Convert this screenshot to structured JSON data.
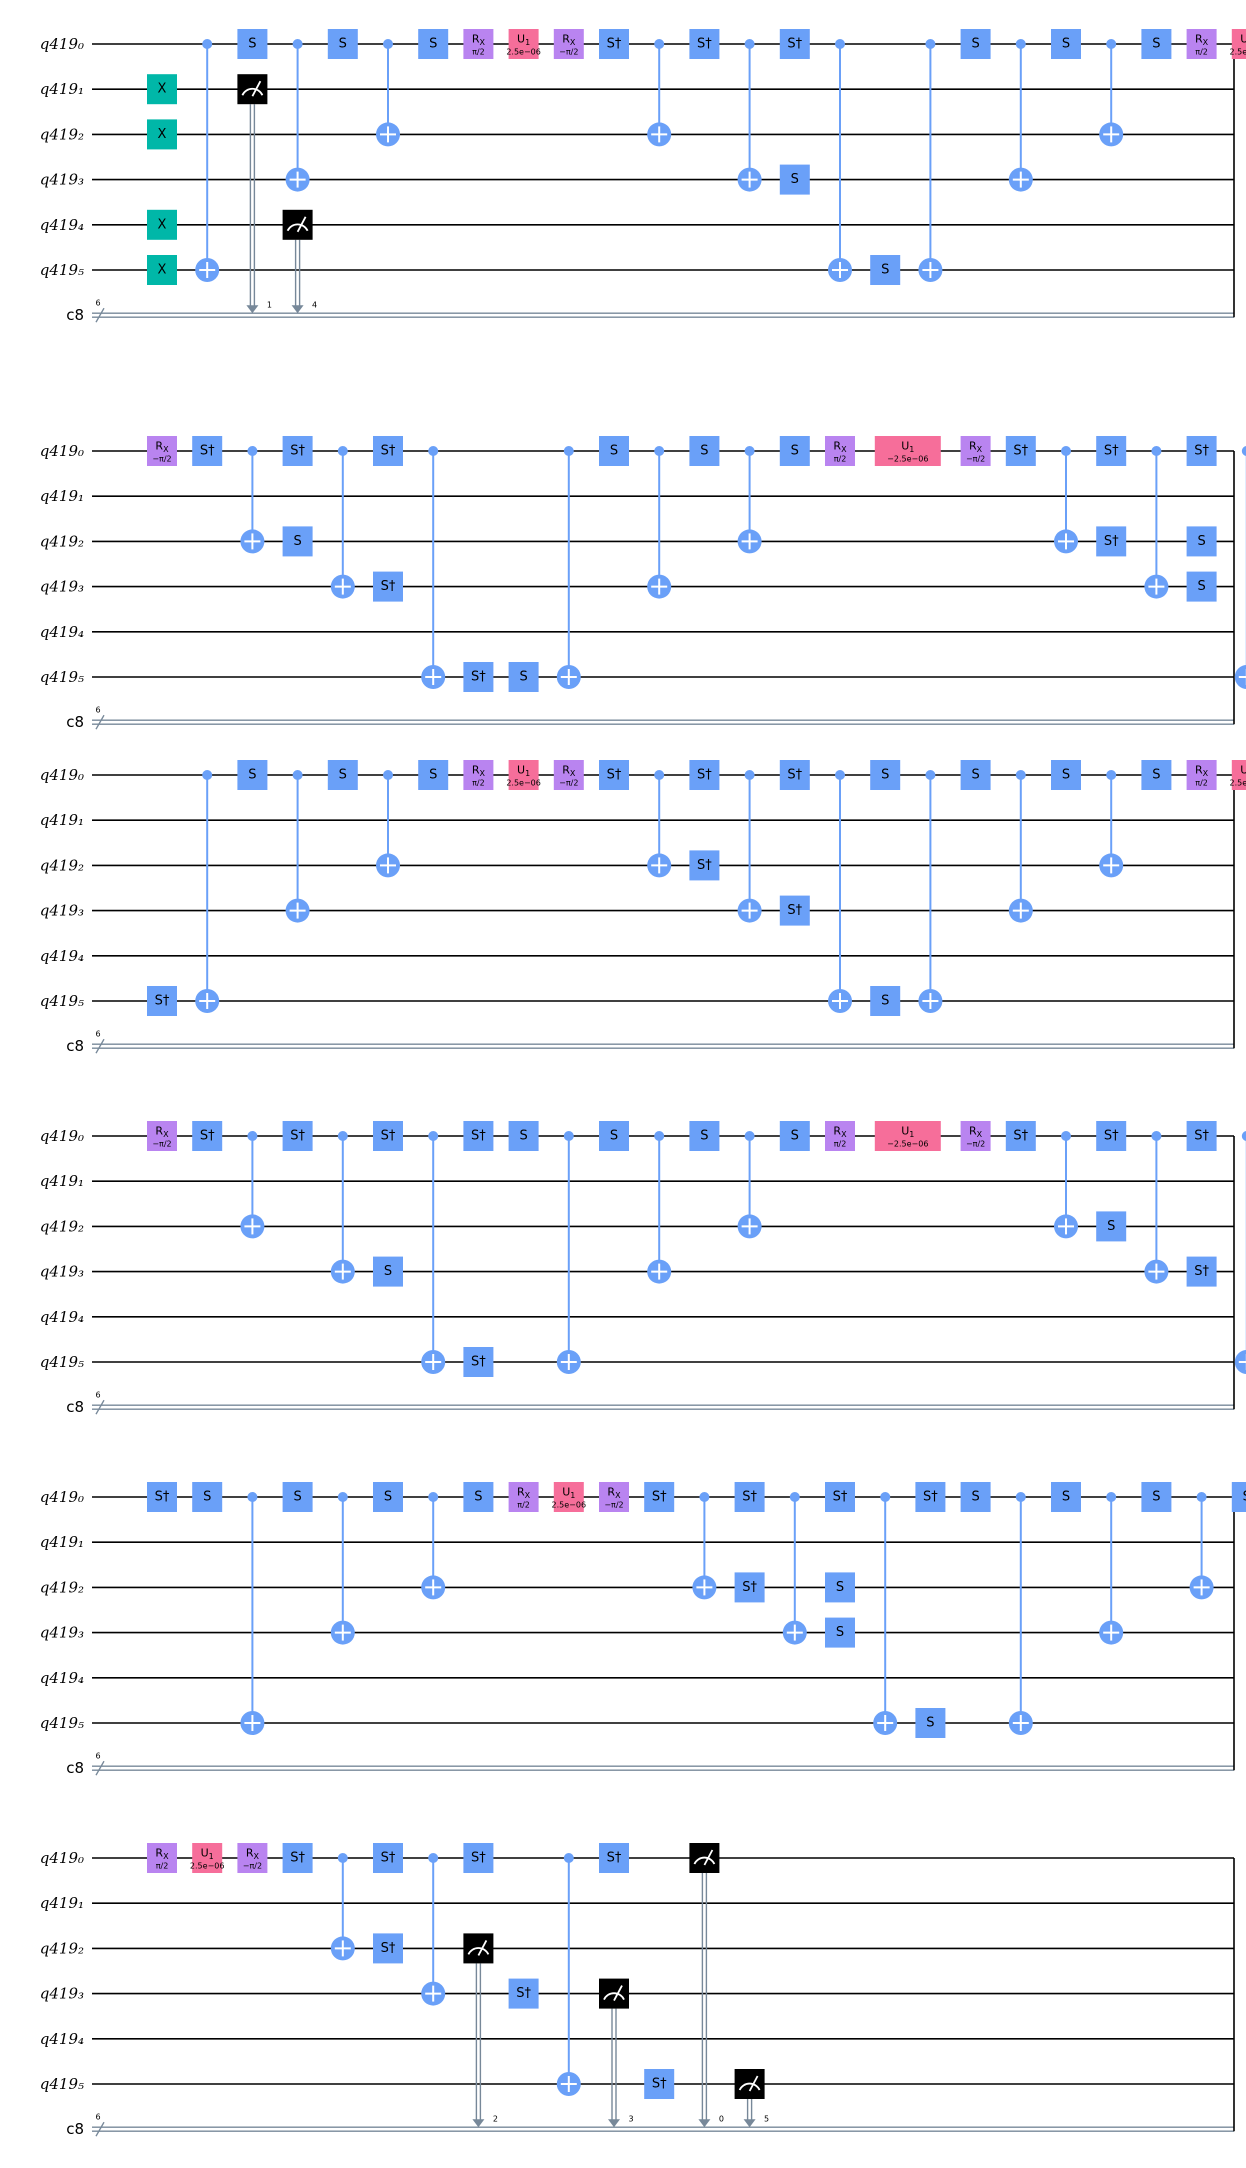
{
  "qubit_labels": [
    "q419₀",
    "q419₁",
    "q419₂",
    "q419₃",
    "q419₄",
    "q419₅"
  ],
  "classical_label": "c8",
  "bus_width": "6",
  "colors": {
    "x_gate": "#00b7a8",
    "s_gate": "#6aa0f8",
    "rx_gate": "#b984f0",
    "u1_gate": "#f66e9a",
    "measure": "#000000",
    "control": "#6aa0f8",
    "classical_wire": "#778899"
  },
  "gate_text": {
    "x": "X",
    "s": "S",
    "sdg": "S†",
    "rx": "R",
    "rx_sub": "X",
    "u1": "U",
    "u1_sub": "1",
    "rx_plus": "π/2",
    "rx_minus": "−π/2",
    "u1_plus": "2.5e−06",
    "u1_minus": "−2.5e−06"
  },
  "rows": [
    {
      "ops": [
        {
          "c": 0,
          "g": "x",
          "q": [
            1,
            2,
            4,
            5
          ]
        },
        {
          "c": 1,
          "g": "cx",
          "ctl": 0,
          "tgt": 5
        },
        {
          "c": 2,
          "g": "s",
          "q": [
            0
          ]
        },
        {
          "c": 2,
          "g": "m",
          "q": 1,
          "bit": "1"
        },
        {
          "c": 3,
          "g": "cx",
          "ctl": 0,
          "tgt": 3
        },
        {
          "c": 3,
          "g": "m",
          "q": 4,
          "bit": "4"
        },
        {
          "c": 4,
          "g": "s",
          "q": [
            0
          ]
        },
        {
          "c": 5,
          "g": "cx",
          "ctl": 0,
          "tgt": 2
        },
        {
          "c": 6,
          "g": "s",
          "q": [
            0
          ]
        },
        {
          "c": 7,
          "g": "rx+",
          "q": [
            0
          ]
        },
        {
          "c": 8,
          "g": "u1+",
          "q": [
            0
          ]
        },
        {
          "c": 9,
          "g": "rx-",
          "q": [
            0
          ]
        },
        {
          "c": 10,
          "g": "sdg",
          "q": [
            0
          ]
        },
        {
          "c": 11,
          "g": "cx",
          "ctl": 0,
          "tgt": 2
        },
        {
          "c": 12,
          "g": "sdg",
          "q": [
            0
          ]
        },
        {
          "c": 13,
          "g": "cx",
          "ctl": 0,
          "tgt": 3
        },
        {
          "c": 14,
          "g": "sdg",
          "q": [
            0
          ]
        },
        {
          "c": 14,
          "g": "s",
          "q": [
            3
          ]
        },
        {
          "c": 15,
          "g": "cx",
          "ctl": 0,
          "tgt": 5
        },
        {
          "c": 16,
          "g": "s",
          "q": [
            5
          ]
        },
        {
          "c": 17,
          "g": "cx",
          "ctl": 0,
          "tgt": 5
        },
        {
          "c": 18,
          "g": "s",
          "q": [
            0
          ]
        },
        {
          "c": 19,
          "g": "cx",
          "ctl": 0,
          "tgt": 3
        },
        {
          "c": 20,
          "g": "s",
          "q": [
            0
          ]
        },
        {
          "c": 21,
          "g": "cx",
          "ctl": 0,
          "tgt": 2
        },
        {
          "c": 22,
          "g": "s",
          "q": [
            0
          ]
        },
        {
          "c": 23,
          "g": "rx+",
          "q": [
            0
          ]
        },
        {
          "c": 24,
          "g": "u1+",
          "q": [
            0
          ]
        }
      ]
    },
    {
      "ops": [
        {
          "c": 0,
          "g": "rx-",
          "q": [
            0
          ]
        },
        {
          "c": 1,
          "g": "sdg",
          "q": [
            0
          ]
        },
        {
          "c": 2,
          "g": "cx",
          "ctl": 0,
          "tgt": 2
        },
        {
          "c": 3,
          "g": "sdg",
          "q": [
            0
          ]
        },
        {
          "c": 3,
          "g": "s",
          "q": [
            2
          ]
        },
        {
          "c": 4,
          "g": "cx",
          "ctl": 0,
          "tgt": 3
        },
        {
          "c": 5,
          "g": "sdg",
          "q": [
            0,
            3
          ]
        },
        {
          "c": 6,
          "g": "cx",
          "ctl": 0,
          "tgt": 5
        },
        {
          "c": 7,
          "g": "sdg",
          "q": [
            5
          ]
        },
        {
          "c": 8,
          "g": "s",
          "q": [
            5
          ]
        },
        {
          "c": 9,
          "g": "cx",
          "ctl": 0,
          "tgt": 5
        },
        {
          "c": 10,
          "g": "s",
          "q": [
            0
          ]
        },
        {
          "c": 11,
          "g": "cx",
          "ctl": 0,
          "tgt": 3
        },
        {
          "c": 12,
          "g": "s",
          "q": [
            0
          ]
        },
        {
          "c": 13,
          "g": "cx",
          "ctl": 0,
          "tgt": 2
        },
        {
          "c": 14,
          "g": "s",
          "q": [
            0
          ]
        },
        {
          "c": 15,
          "g": "rx+",
          "q": [
            0
          ]
        },
        {
          "c": 16.5,
          "g": "u1-",
          "q": [
            0
          ]
        },
        {
          "c": 18,
          "g": "rx-",
          "q": [
            0
          ]
        },
        {
          "c": 19,
          "g": "sdg",
          "q": [
            0
          ]
        },
        {
          "c": 20,
          "g": "cx",
          "ctl": 0,
          "tgt": 2
        },
        {
          "c": 21,
          "g": "sdg",
          "q": [
            0,
            2
          ]
        },
        {
          "c": 22,
          "g": "cx",
          "ctl": 0,
          "tgt": 3
        },
        {
          "c": 23,
          "g": "sdg",
          "q": [
            0
          ]
        },
        {
          "c": 23,
          "g": "s",
          "q": [
            2,
            3
          ]
        },
        {
          "c": 24,
          "g": "cx",
          "ctl": 0,
          "tgt": 5
        }
      ]
    },
    {
      "ops": [
        {
          "c": 0,
          "g": "sdg",
          "q": [
            5
          ]
        },
        {
          "c": 1,
          "g": "cx",
          "ctl": 0,
          "tgt": 5
        },
        {
          "c": 2,
          "g": "s",
          "q": [
            0
          ]
        },
        {
          "c": 3,
          "g": "cx",
          "ctl": 0,
          "tgt": 3
        },
        {
          "c": 4,
          "g": "s",
          "q": [
            0
          ]
        },
        {
          "c": 5,
          "g": "cx",
          "ctl": 0,
          "tgt": 2
        },
        {
          "c": 6,
          "g": "s",
          "q": [
            0
          ]
        },
        {
          "c": 7,
          "g": "rx+",
          "q": [
            0
          ]
        },
        {
          "c": 8,
          "g": "u1+",
          "q": [
            0
          ]
        },
        {
          "c": 9,
          "g": "rx-",
          "q": [
            0
          ]
        },
        {
          "c": 10,
          "g": "sdg",
          "q": [
            0
          ]
        },
        {
          "c": 11,
          "g": "cx",
          "ctl": 0,
          "tgt": 2
        },
        {
          "c": 12,
          "g": "sdg",
          "q": [
            0,
            2
          ]
        },
        {
          "c": 13,
          "g": "cx",
          "ctl": 0,
          "tgt": 3
        },
        {
          "c": 14,
          "g": "sdg",
          "q": [
            0,
            3
          ]
        },
        {
          "c": 15,
          "g": "cx",
          "ctl": 0,
          "tgt": 5
        },
        {
          "c": 16,
          "g": "s",
          "q": [
            0,
            5
          ]
        },
        {
          "c": 17,
          "g": "cx",
          "ctl": 0,
          "tgt": 5
        },
        {
          "c": 18,
          "g": "s",
          "q": [
            0
          ]
        },
        {
          "c": 19,
          "g": "cx",
          "ctl": 0,
          "tgt": 3
        },
        {
          "c": 20,
          "g": "s",
          "q": [
            0
          ]
        },
        {
          "c": 21,
          "g": "cx",
          "ctl": 0,
          "tgt": 2
        },
        {
          "c": 22,
          "g": "s",
          "q": [
            0
          ]
        },
        {
          "c": 23,
          "g": "rx+",
          "q": [
            0
          ]
        },
        {
          "c": 24,
          "g": "u1+",
          "q": [
            0
          ]
        }
      ]
    },
    {
      "ops": [
        {
          "c": 0,
          "g": "rx-",
          "q": [
            0
          ]
        },
        {
          "c": 1,
          "g": "sdg",
          "q": [
            0
          ]
        },
        {
          "c": 2,
          "g": "cx",
          "ctl": 0,
          "tgt": 2
        },
        {
          "c": 3,
          "g": "sdg",
          "q": [
            0
          ]
        },
        {
          "c": 4,
          "g": "cx",
          "ctl": 0,
          "tgt": 3
        },
        {
          "c": 5,
          "g": "sdg",
          "q": [
            0
          ]
        },
        {
          "c": 5,
          "g": "s",
          "q": [
            3
          ]
        },
        {
          "c": 6,
          "g": "cx",
          "ctl": 0,
          "tgt": 5
        },
        {
          "c": 7,
          "g": "sdg",
          "q": [
            0,
            5
          ]
        },
        {
          "c": 8,
          "g": "s",
          "q": [
            0
          ]
        },
        {
          "c": 9,
          "g": "cx",
          "ctl": 0,
          "tgt": 5
        },
        {
          "c": 10,
          "g": "s",
          "q": [
            0
          ]
        },
        {
          "c": 11,
          "g": "cx",
          "ctl": 0,
          "tgt": 3
        },
        {
          "c": 12,
          "g": "s",
          "q": [
            0
          ]
        },
        {
          "c": 13,
          "g": "cx",
          "ctl": 0,
          "tgt": 2
        },
        {
          "c": 14,
          "g": "s",
          "q": [
            0
          ]
        },
        {
          "c": 15,
          "g": "rx+",
          "q": [
            0
          ]
        },
        {
          "c": 16.5,
          "g": "u1-",
          "q": [
            0
          ]
        },
        {
          "c": 18,
          "g": "rx-",
          "q": [
            0
          ]
        },
        {
          "c": 19,
          "g": "sdg",
          "q": [
            0
          ]
        },
        {
          "c": 20,
          "g": "cx",
          "ctl": 0,
          "tgt": 2
        },
        {
          "c": 21,
          "g": "sdg",
          "q": [
            0
          ]
        },
        {
          "c": 21,
          "g": "s",
          "q": [
            2
          ]
        },
        {
          "c": 22,
          "g": "cx",
          "ctl": 0,
          "tgt": 3
        },
        {
          "c": 23,
          "g": "sdg",
          "q": [
            0,
            3
          ]
        },
        {
          "c": 24,
          "g": "cx",
          "ctl": 0,
          "tgt": 5
        }
      ]
    },
    {
      "ops": [
        {
          "c": 0,
          "g": "sdg",
          "q": [
            0
          ]
        },
        {
          "c": 1,
          "g": "s",
          "q": [
            0
          ]
        },
        {
          "c": 2,
          "g": "cx",
          "ctl": 0,
          "tgt": 5
        },
        {
          "c": 3,
          "g": "s",
          "q": [
            0
          ]
        },
        {
          "c": 4,
          "g": "cx",
          "ctl": 0,
          "tgt": 3
        },
        {
          "c": 5,
          "g": "s",
          "q": [
            0
          ]
        },
        {
          "c": 6,
          "g": "cx",
          "ctl": 0,
          "tgt": 2
        },
        {
          "c": 7,
          "g": "s",
          "q": [
            0
          ]
        },
        {
          "c": 8,
          "g": "rx+",
          "q": [
            0
          ]
        },
        {
          "c": 9,
          "g": "u1+",
          "q": [
            0
          ]
        },
        {
          "c": 10,
          "g": "rx-",
          "q": [
            0
          ]
        },
        {
          "c": 11,
          "g": "sdg",
          "q": [
            0
          ]
        },
        {
          "c": 12,
          "g": "cx",
          "ctl": 0,
          "tgt": 2
        },
        {
          "c": 13,
          "g": "sdg",
          "q": [
            0,
            2
          ]
        },
        {
          "c": 14,
          "g": "cx",
          "ctl": 0,
          "tgt": 3
        },
        {
          "c": 15,
          "g": "sdg",
          "q": [
            0
          ]
        },
        {
          "c": 15,
          "g": "s",
          "q": [
            2,
            3
          ]
        },
        {
          "c": 16,
          "g": "cx",
          "ctl": 0,
          "tgt": 5
        },
        {
          "c": 17,
          "g": "sdg",
          "q": [
            0
          ]
        },
        {
          "c": 17,
          "g": "s",
          "q": [
            5
          ]
        },
        {
          "c": 18,
          "g": "s",
          "q": [
            0
          ]
        },
        {
          "c": 19,
          "g": "cx",
          "ctl": 0,
          "tgt": 5
        },
        {
          "c": 20,
          "g": "s",
          "q": [
            0
          ]
        },
        {
          "c": 21,
          "g": "cx",
          "ctl": 0,
          "tgt": 3
        },
        {
          "c": 22,
          "g": "s",
          "q": [
            0
          ]
        },
        {
          "c": 23,
          "g": "cx",
          "ctl": 0,
          "tgt": 2
        },
        {
          "c": 24,
          "g": "s",
          "q": [
            0
          ]
        }
      ]
    },
    {
      "ops": [
        {
          "c": 0,
          "g": "rx+",
          "q": [
            0
          ]
        },
        {
          "c": 1,
          "g": "u1+",
          "q": [
            0
          ]
        },
        {
          "c": 2,
          "g": "rx-",
          "q": [
            0
          ]
        },
        {
          "c": 3,
          "g": "sdg",
          "q": [
            0
          ]
        },
        {
          "c": 4,
          "g": "cx",
          "ctl": 0,
          "tgt": 2
        },
        {
          "c": 5,
          "g": "sdg",
          "q": [
            0,
            2
          ]
        },
        {
          "c": 6,
          "g": "cx",
          "ctl": 0,
          "tgt": 3
        },
        {
          "c": 7,
          "g": "sdg",
          "q": [
            0
          ]
        },
        {
          "c": 7,
          "g": "m",
          "q": 2,
          "bit": "2"
        },
        {
          "c": 8,
          "g": "sdg",
          "q": [
            3
          ]
        },
        {
          "c": 9,
          "g": "cx",
          "ctl": 0,
          "tgt": 5
        },
        {
          "c": 10,
          "g": "sdg",
          "q": [
            0
          ]
        },
        {
          "c": 10,
          "g": "m",
          "q": 3,
          "bit": "3"
        },
        {
          "c": 11,
          "g": "sdg",
          "q": [
            5
          ]
        },
        {
          "c": 12,
          "g": "m",
          "q": 0,
          "bit": "0"
        },
        {
          "c": 13,
          "g": "m",
          "q": 5,
          "bit": "5"
        }
      ]
    }
  ]
}
